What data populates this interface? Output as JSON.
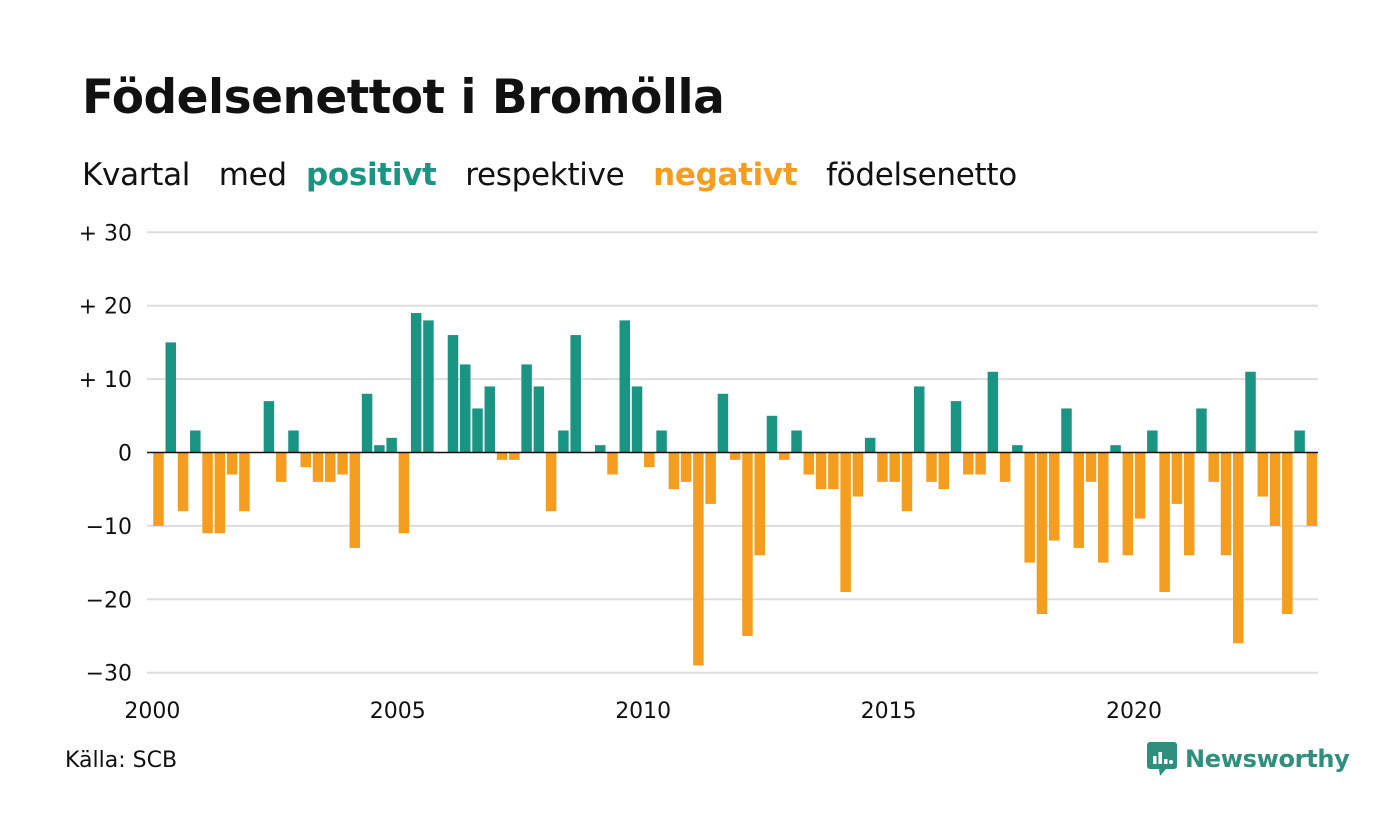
{
  "title": "Födelsenettot i Bromölla",
  "subtitle": {
    "w1": "Kvartal",
    "w2": "med",
    "positive": "positivt",
    "w3": "respektive",
    "negative": "negativt",
    "w4": "födelsenetto"
  },
  "source": "Källa: SCB",
  "brand": "Newsworthy",
  "colors": {
    "positive": "#1a9583",
    "negative": "#f49d1e",
    "grid": "#dddddd",
    "brand": "#2f8f7d"
  },
  "icons": {
    "brand_logo": "newsworthy-logo-icon"
  },
  "chart_data": {
    "type": "bar",
    "start_quarter": "2000 Q1",
    "values": [
      -10,
      15,
      -8,
      3,
      -11,
      -11,
      -3,
      -8,
      0,
      7,
      -4,
      3,
      -2,
      -4,
      -4,
      -3,
      -13,
      8,
      1,
      2,
      -11,
      19,
      18,
      0,
      16,
      12,
      6,
      9,
      -1,
      -1,
      12,
      9,
      -8,
      3,
      16,
      0,
      1,
      -3,
      18,
      9,
      -2,
      3,
      -5,
      -4,
      -29,
      -7,
      8,
      -1,
      -25,
      -14,
      5,
      -1,
      3,
      -3,
      -5,
      -5,
      -19,
      -6,
      2,
      -4,
      -4,
      -8,
      9,
      -4,
      -5,
      7,
      -3,
      -3,
      11,
      -4,
      1,
      -15,
      -22,
      -12,
      6,
      -13,
      -4,
      -15,
      1,
      -14,
      -9,
      3,
      -19,
      -7,
      -14,
      6,
      -4,
      -14,
      -26,
      11,
      -6,
      -10,
      -22,
      3,
      -10
    ],
    "yticks": [
      30,
      20,
      10,
      0,
      -10,
      -20,
      -30
    ],
    "ytick_labels": [
      "+ 30",
      "+ 20",
      "+ 10",
      "0",
      "−10",
      "−20",
      "−30"
    ],
    "xticks": [
      2000,
      2005,
      2010,
      2015,
      2020
    ],
    "xtick_labels": [
      "2000",
      "2005",
      "2010",
      "2015",
      "2020"
    ],
    "ylim": [
      -30,
      30
    ],
    "grid": true
  }
}
